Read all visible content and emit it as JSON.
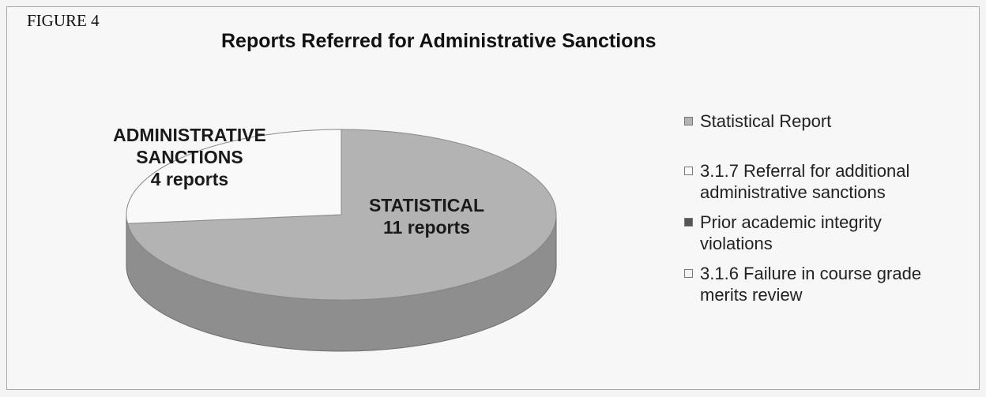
{
  "figure_label": "FIGURE 4",
  "colors": {
    "statistical": "#b3b3b3",
    "statistical_side": "#8e8e8e",
    "sanctions": "#f9f9f9",
    "prior": "#555555",
    "failure": "#f3f3f3"
  },
  "chart_data": {
    "type": "pie",
    "title": "Reports Referred for Administrative Sanctions",
    "slices": [
      {
        "name": "Statistical Report",
        "value": 11,
        "label_lines": [
          "STATISTICAL",
          "11 reports"
        ]
      },
      {
        "name": "3.1.7 Referral for additional administrative sanctions",
        "value": 4,
        "label_lines": [
          "ADMINISTRATIVE",
          "SANCTIONS",
          "4 reports"
        ]
      },
      {
        "name": "Prior academic integrity violations",
        "value": 0
      },
      {
        "name": "3.1.6 Failure in course grade merits review",
        "value": 0
      }
    ],
    "legend": [
      {
        "lines": [
          "Statistical Report"
        ]
      },
      {
        "lines": [
          "3.1.7 Referral for additional",
          "administrative sanctions"
        ]
      },
      {
        "lines": [
          "Prior academic integrity",
          "violations"
        ]
      },
      {
        "lines": [
          "3.1.6 Failure in course grade",
          "merits review"
        ]
      }
    ],
    "legend_position": "right"
  }
}
